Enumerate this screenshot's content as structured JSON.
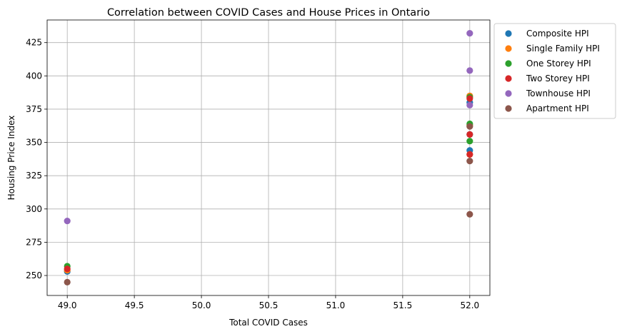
{
  "chart_data": {
    "type": "scatter",
    "title": "Correlation between COVID Cases and House Prices in Ontario",
    "xlabel": "Total COVID Cases",
    "ylabel": "Housing Price Index",
    "xlim": [
      48.85,
      52.15
    ],
    "ylim": [
      235,
      442
    ],
    "xticks": [
      49.0,
      49.5,
      50.0,
      50.5,
      51.0,
      51.5,
      52.0
    ],
    "xtick_labels": [
      "49.0",
      "49.5",
      "50.0",
      "50.5",
      "51.0",
      "51.5",
      "52.0"
    ],
    "yticks": [
      250,
      275,
      300,
      325,
      350,
      375,
      400,
      425
    ],
    "ytick_labels": [
      "250",
      "275",
      "300",
      "325",
      "350",
      "375",
      "400",
      "425"
    ],
    "grid": true,
    "legend_position": "outside-top-right",
    "series": [
      {
        "name": "Composite HPI",
        "color": "#1f77b4",
        "points": [
          [
            49.0,
            253
          ],
          [
            52.0,
            344
          ],
          [
            52.0,
            356
          ],
          [
            52.0,
            380
          ]
        ]
      },
      {
        "name": "Single Family HPI",
        "color": "#ff7f0e",
        "points": [
          [
            49.0,
            254
          ],
          [
            52.0,
            341
          ],
          [
            52.0,
            363
          ],
          [
            52.0,
            385
          ]
        ]
      },
      {
        "name": "One Storey HPI",
        "color": "#2ca02c",
        "points": [
          [
            49.0,
            257
          ],
          [
            52.0,
            351
          ],
          [
            52.0,
            364
          ],
          [
            52.0,
            384
          ]
        ]
      },
      {
        "name": "Two Storey HPI",
        "color": "#d62728",
        "points": [
          [
            49.0,
            255
          ],
          [
            52.0,
            341
          ],
          [
            52.0,
            356
          ],
          [
            52.0,
            383
          ]
        ]
      },
      {
        "name": "Townhouse HPI",
        "color": "#9467bd",
        "points": [
          [
            49.0,
            291
          ],
          [
            52.0,
            378
          ],
          [
            52.0,
            404
          ],
          [
            52.0,
            432
          ]
        ]
      },
      {
        "name": "Apartment HPI",
        "color": "#8c564b",
        "points": [
          [
            49.0,
            245
          ],
          [
            52.0,
            296
          ],
          [
            52.0,
            336
          ],
          [
            52.0,
            362
          ]
        ]
      }
    ]
  }
}
